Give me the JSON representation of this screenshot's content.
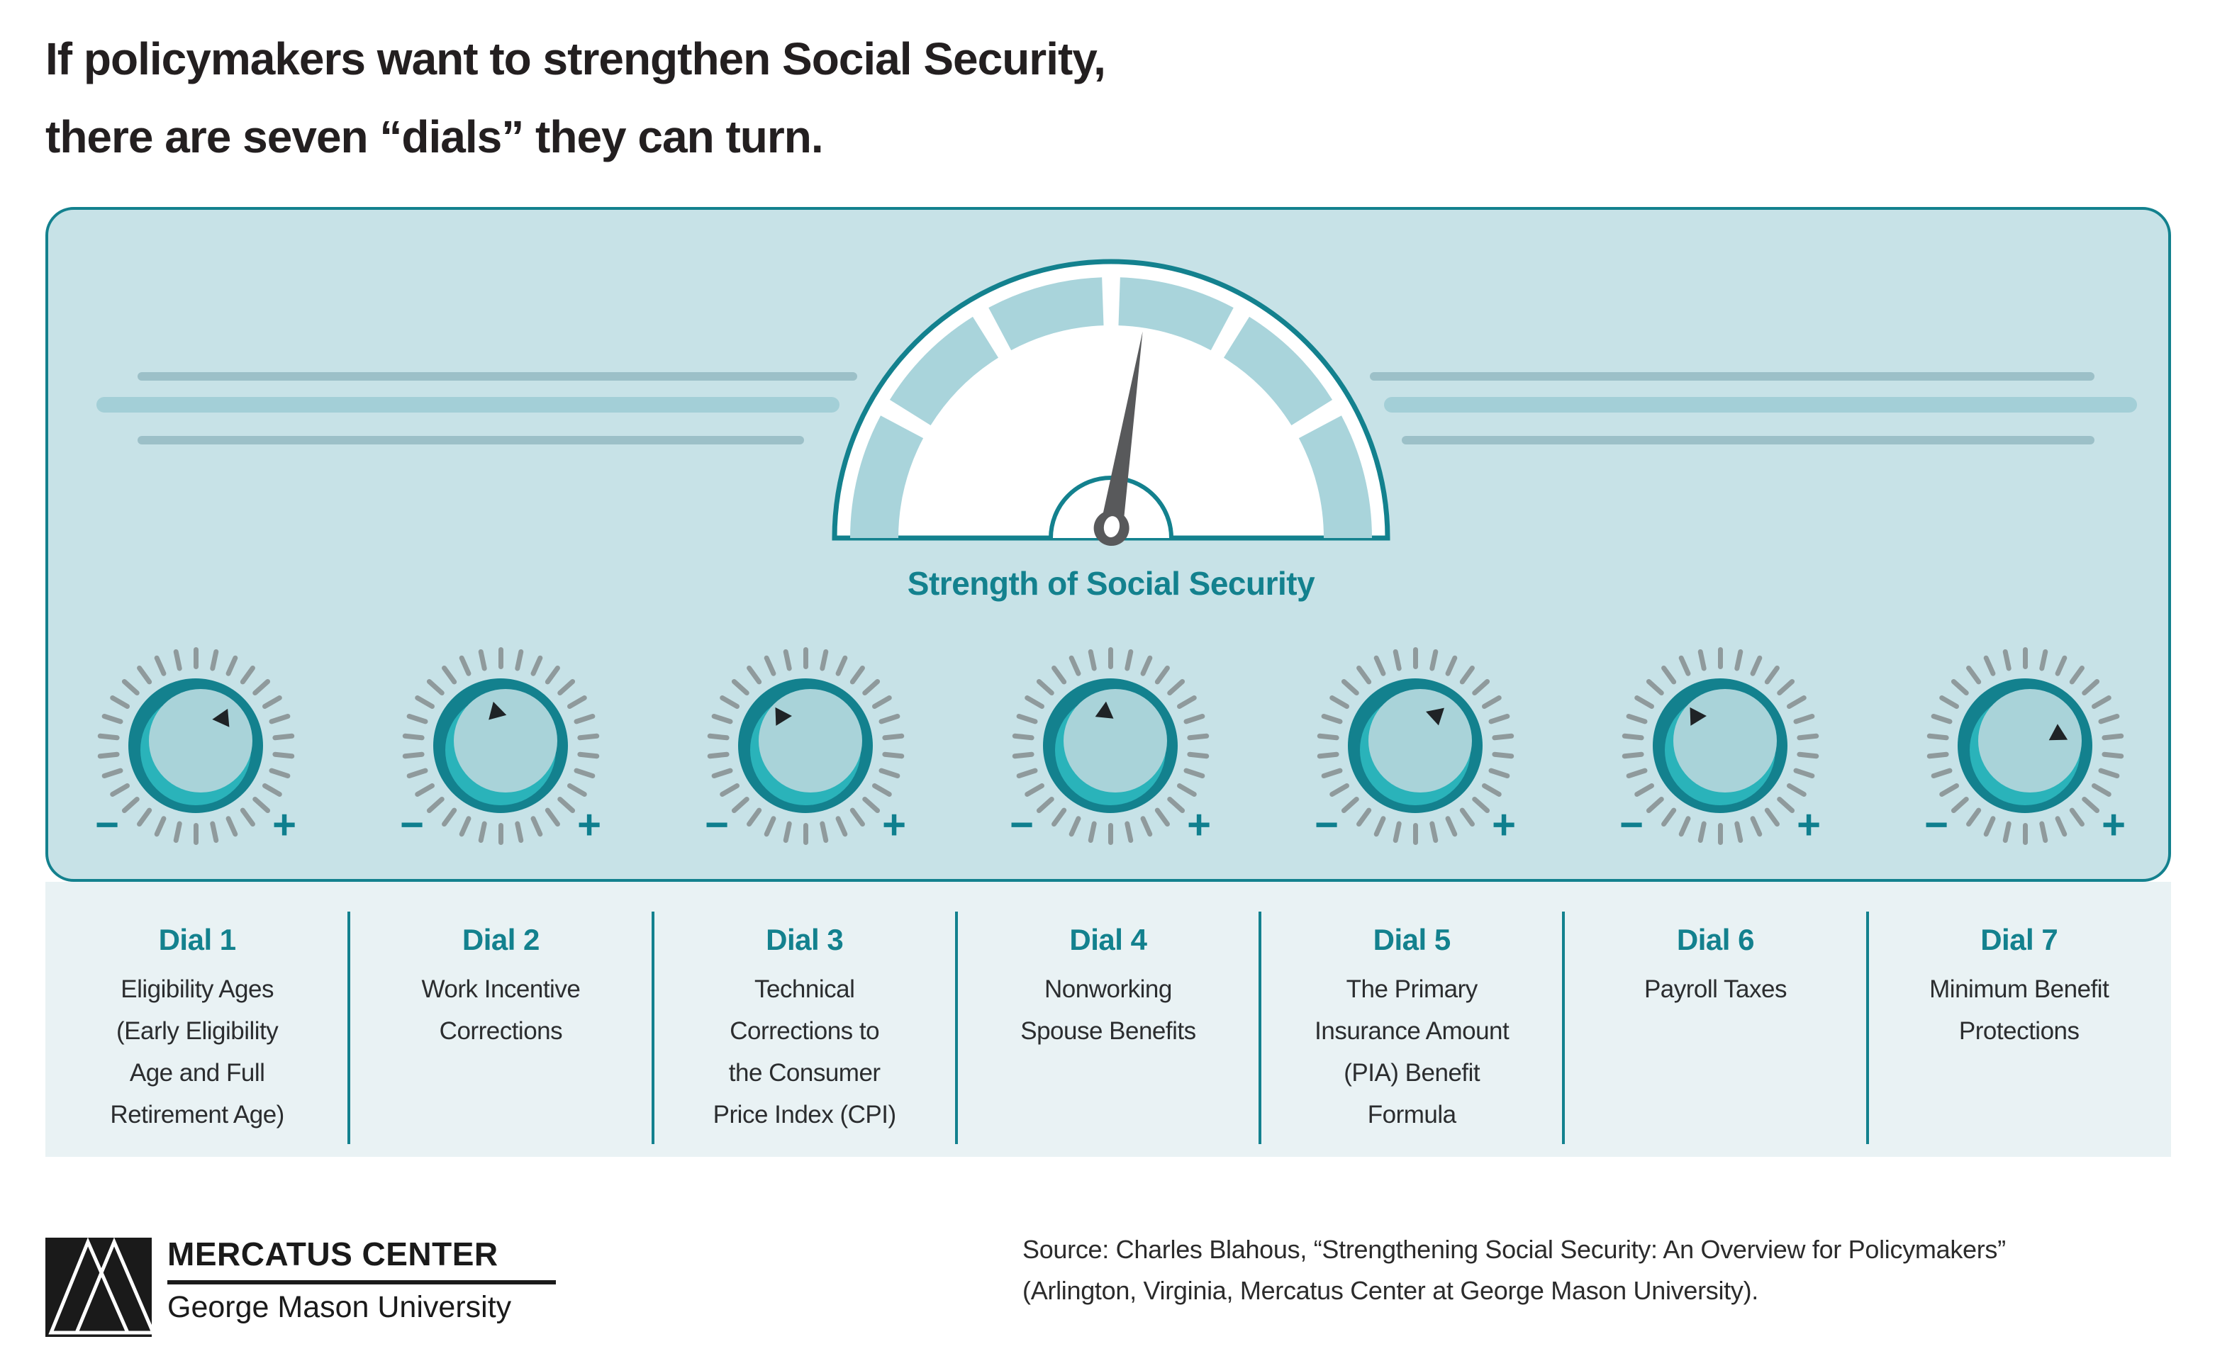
{
  "title": "If policymakers want to strengthen Social Security,\nthere are seven “dials” they can turn.",
  "panel": {
    "gauge": {
      "label": "Strength of Social Security",
      "segments_deg": [
        [
          180,
          152
        ],
        [
          148,
          122
        ],
        [
          118,
          92
        ],
        [
          88,
          62
        ],
        [
          58,
          32
        ],
        [
          28,
          0
        ]
      ],
      "needle_angle_deg": 9
    },
    "dials": [
      {
        "id": 1,
        "minus": "−",
        "plus": "+",
        "pointer": {
          "position_deg": 42,
          "rotation_deg": -95
        }
      },
      {
        "id": 2,
        "minus": "−",
        "plus": "+",
        "pointer": {
          "position_deg": -8,
          "rotation_deg": -15
        }
      },
      {
        "id": 3,
        "minus": "−",
        "plus": "+",
        "pointer": {
          "position_deg": -36,
          "rotation_deg": 88
        }
      },
      {
        "id": 4,
        "minus": "−",
        "plus": "+",
        "pointer": {
          "position_deg": -8,
          "rotation_deg": 6
        }
      },
      {
        "id": 5,
        "minus": "−",
        "plus": "+",
        "pointer": {
          "position_deg": 30,
          "rotation_deg": -72
        }
      },
      {
        "id": 6,
        "minus": "−",
        "plus": "+",
        "pointer": {
          "position_deg": -36,
          "rotation_deg": 88
        }
      },
      {
        "id": 7,
        "minus": "−",
        "plus": "+",
        "pointer": {
          "position_deg": 74,
          "rotation_deg": 118
        }
      }
    ]
  },
  "legend": {
    "columns": [
      {
        "heading": "Dial 1",
        "description": "Eligibility Ages\n(Early Eligibility\nAge and Full\nRetirement Age)"
      },
      {
        "heading": "Dial 2",
        "description": "Work Incentive\nCorrections"
      },
      {
        "heading": "Dial 3",
        "description": "Technical\nCorrections to\nthe Consumer\nPrice Index (CPI)"
      },
      {
        "heading": "Dial 4",
        "description": "Nonworking\nSpouse Benefits"
      },
      {
        "heading": "Dial 5",
        "description": "The Primary\nInsurance Amount\n(PIA) Benefit\nFormula"
      },
      {
        "heading": "Dial 6",
        "description": "Payroll Taxes"
      },
      {
        "heading": "Dial 7",
        "description": "Minimum Benefit\nProtections"
      }
    ]
  },
  "footer": {
    "logo_line1": "MERCATUS CENTER",
    "logo_line2": "George Mason University",
    "source": "Source: Charles Blahous, “Strengthening Social Security: An Overview for Policymakers”\n(Arlington, Virginia, Mercatus Center at George Mason University)."
  },
  "colors": {
    "teal": "#13818E",
    "panel_bg": "#C7E2E7",
    "strip_bg": "#E9F2F4",
    "gauge_band": "#A9D4DB",
    "knob_face": "#A9D3D9",
    "knob_crescent": "#2AB3BA",
    "tick": "#8F9A9C",
    "needle": "#58595B",
    "text_dark": "#231F20"
  }
}
